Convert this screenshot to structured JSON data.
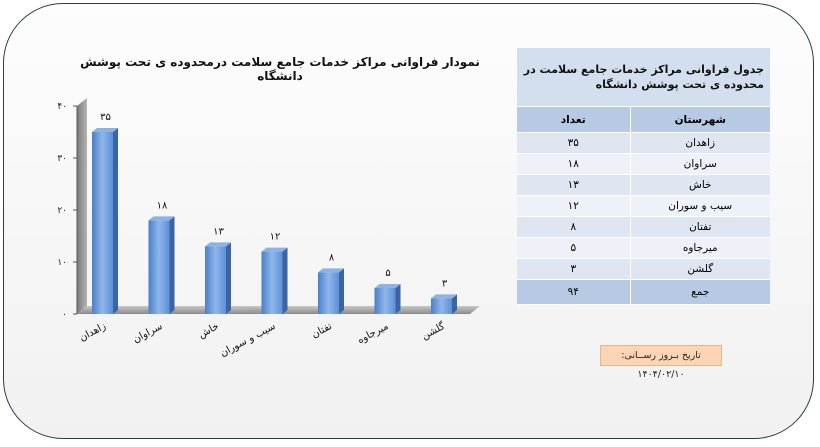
{
  "chart_data": {
    "type": "bar",
    "title": "نمودار فراوانی مراکز خدمات جامع سلامت درمحدوده ی تحت پوشش دانشگاه",
    "categories": [
      "زاهدان",
      "سراوان",
      "خاش",
      "سیب و سوران",
      "تفتان",
      "میرجاوه",
      "گلشن"
    ],
    "values": [
      35,
      18,
      13,
      12,
      8,
      5,
      3
    ],
    "data_labels": [
      "۳۵",
      "۱۸",
      "۱۳",
      "۱۲",
      "۸",
      "۵",
      "۳"
    ],
    "ylim": [
      0,
      40
    ],
    "y_ticks": [
      0,
      10,
      20,
      30,
      40
    ],
    "y_tick_labels": [
      "۰",
      "۱۰",
      "۲۰",
      "۳۰",
      "۴۰"
    ],
    "grid": false,
    "bar_color": "#5b8ed4"
  },
  "table": {
    "caption": "جدول فراوانی مراکز خدمات جامع سلامت در محدوده ی تحت پوشش دانشگاه",
    "headers": [
      "شهرستان",
      "تعداد"
    ],
    "rows": [
      [
        "زاهدان",
        "۳۵"
      ],
      [
        "سراوان",
        "۱۸"
      ],
      [
        "خاش",
        "۱۳"
      ],
      [
        "سیب و سوران",
        "۱۲"
      ],
      [
        "تفتان",
        "۸"
      ],
      [
        "میرجاوه",
        "۵"
      ],
      [
        "گلشن",
        "۳"
      ]
    ],
    "total": [
      "جمع",
      "۹۴"
    ]
  },
  "update_date": "تاریخ بـروز رســانی: ۱۴۰۴/۰۲/۱۰"
}
